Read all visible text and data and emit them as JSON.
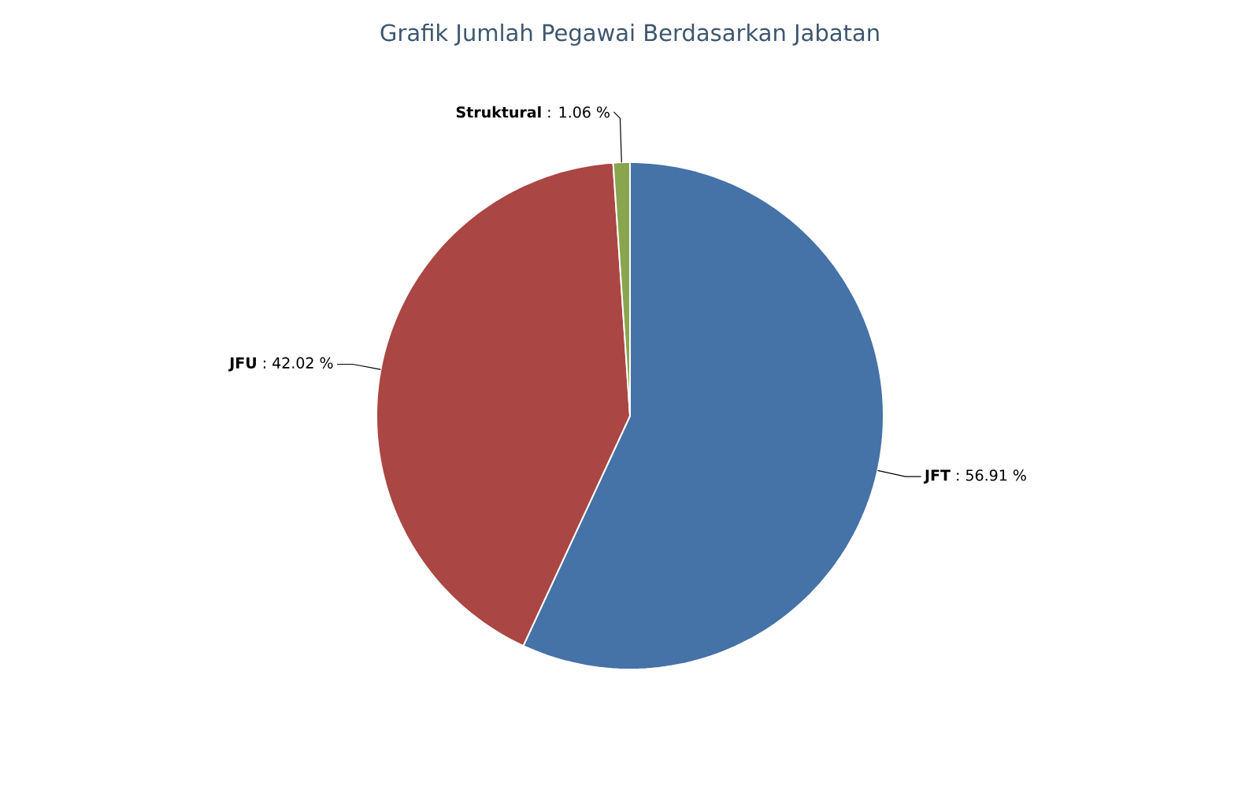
{
  "chart_data": {
    "type": "pie",
    "title": "Grafik Jumlah Pegawai Berdasarkan Jabatan",
    "categories": [
      "JFT",
      "JFU",
      "Struktural"
    ],
    "values": [
      56.91,
      42.02,
      1.06
    ],
    "colors": [
      "#4572a7",
      "#aa4643",
      "#89a54e"
    ],
    "value_labels": [
      ": 56.91 %",
      ": 42.02 %",
      ": 1.06 %"
    ]
  }
}
